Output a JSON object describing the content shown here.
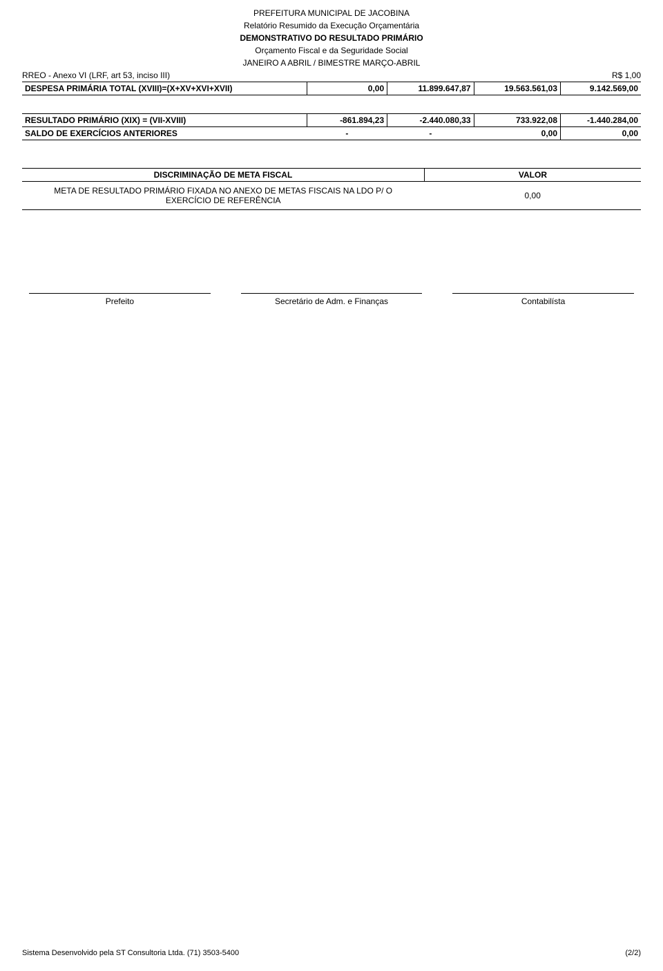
{
  "header": {
    "line1": "PREFEITURA MUNICIPAL DE JACOBINA",
    "line2": "Relatório Resumido da Execução Orçamentária",
    "line3": "DEMONSTRATIVO DO RESULTADO PRIMÁRIO",
    "line4": "Orçamento Fiscal e da Seguridade Social",
    "line5": "JANEIRO A ABRIL / BIMESTRE MARÇO-ABRIL",
    "left_sub": "RREO - Anexo VI (LRF, art 53, inciso III)",
    "right_sub": "R$ 1,00"
  },
  "despesa": {
    "label": "DESPESA PRIMÁRIA TOTAL (XVIII)=(X+XV+XVI+XVII)",
    "v1": "0,00",
    "v2": "11.899.647,87",
    "v3": "19.563.561,03",
    "v4": "9.142.569,00"
  },
  "resultado": {
    "label": "RESULTADO PRIMÁRIO (XIX) = (VII-XVIII)",
    "v1": "-861.894,23",
    "v2": "-2.440.080,33",
    "v3": "733.922,08",
    "v4": "-1.440.284,00"
  },
  "saldo": {
    "label": "SALDO DE EXERCÍCIOS ANTERIORES",
    "v1": "-",
    "v2": "-",
    "v3": "0,00",
    "v4": "0,00"
  },
  "meta_header": {
    "label": "DISCRIMINAÇÃO DE META FISCAL",
    "value": "VALOR"
  },
  "meta_row": {
    "label": "META DE RESULTADO PRIMÁRIO FIXADA NO ANEXO DE METAS FISCAIS NA LDO P/ O EXERCÍCIO DE REFERÊNCIA",
    "value": "0,00"
  },
  "signatures": {
    "s1": "Prefeito",
    "s2": "Secretário de Adm. e Finanças",
    "s3": "Contabilísta"
  },
  "footer": {
    "left": "Sistema Desenvolvido pela ST Consultoria Ltda. (71) 3503-5400",
    "right": "(2/2)"
  }
}
